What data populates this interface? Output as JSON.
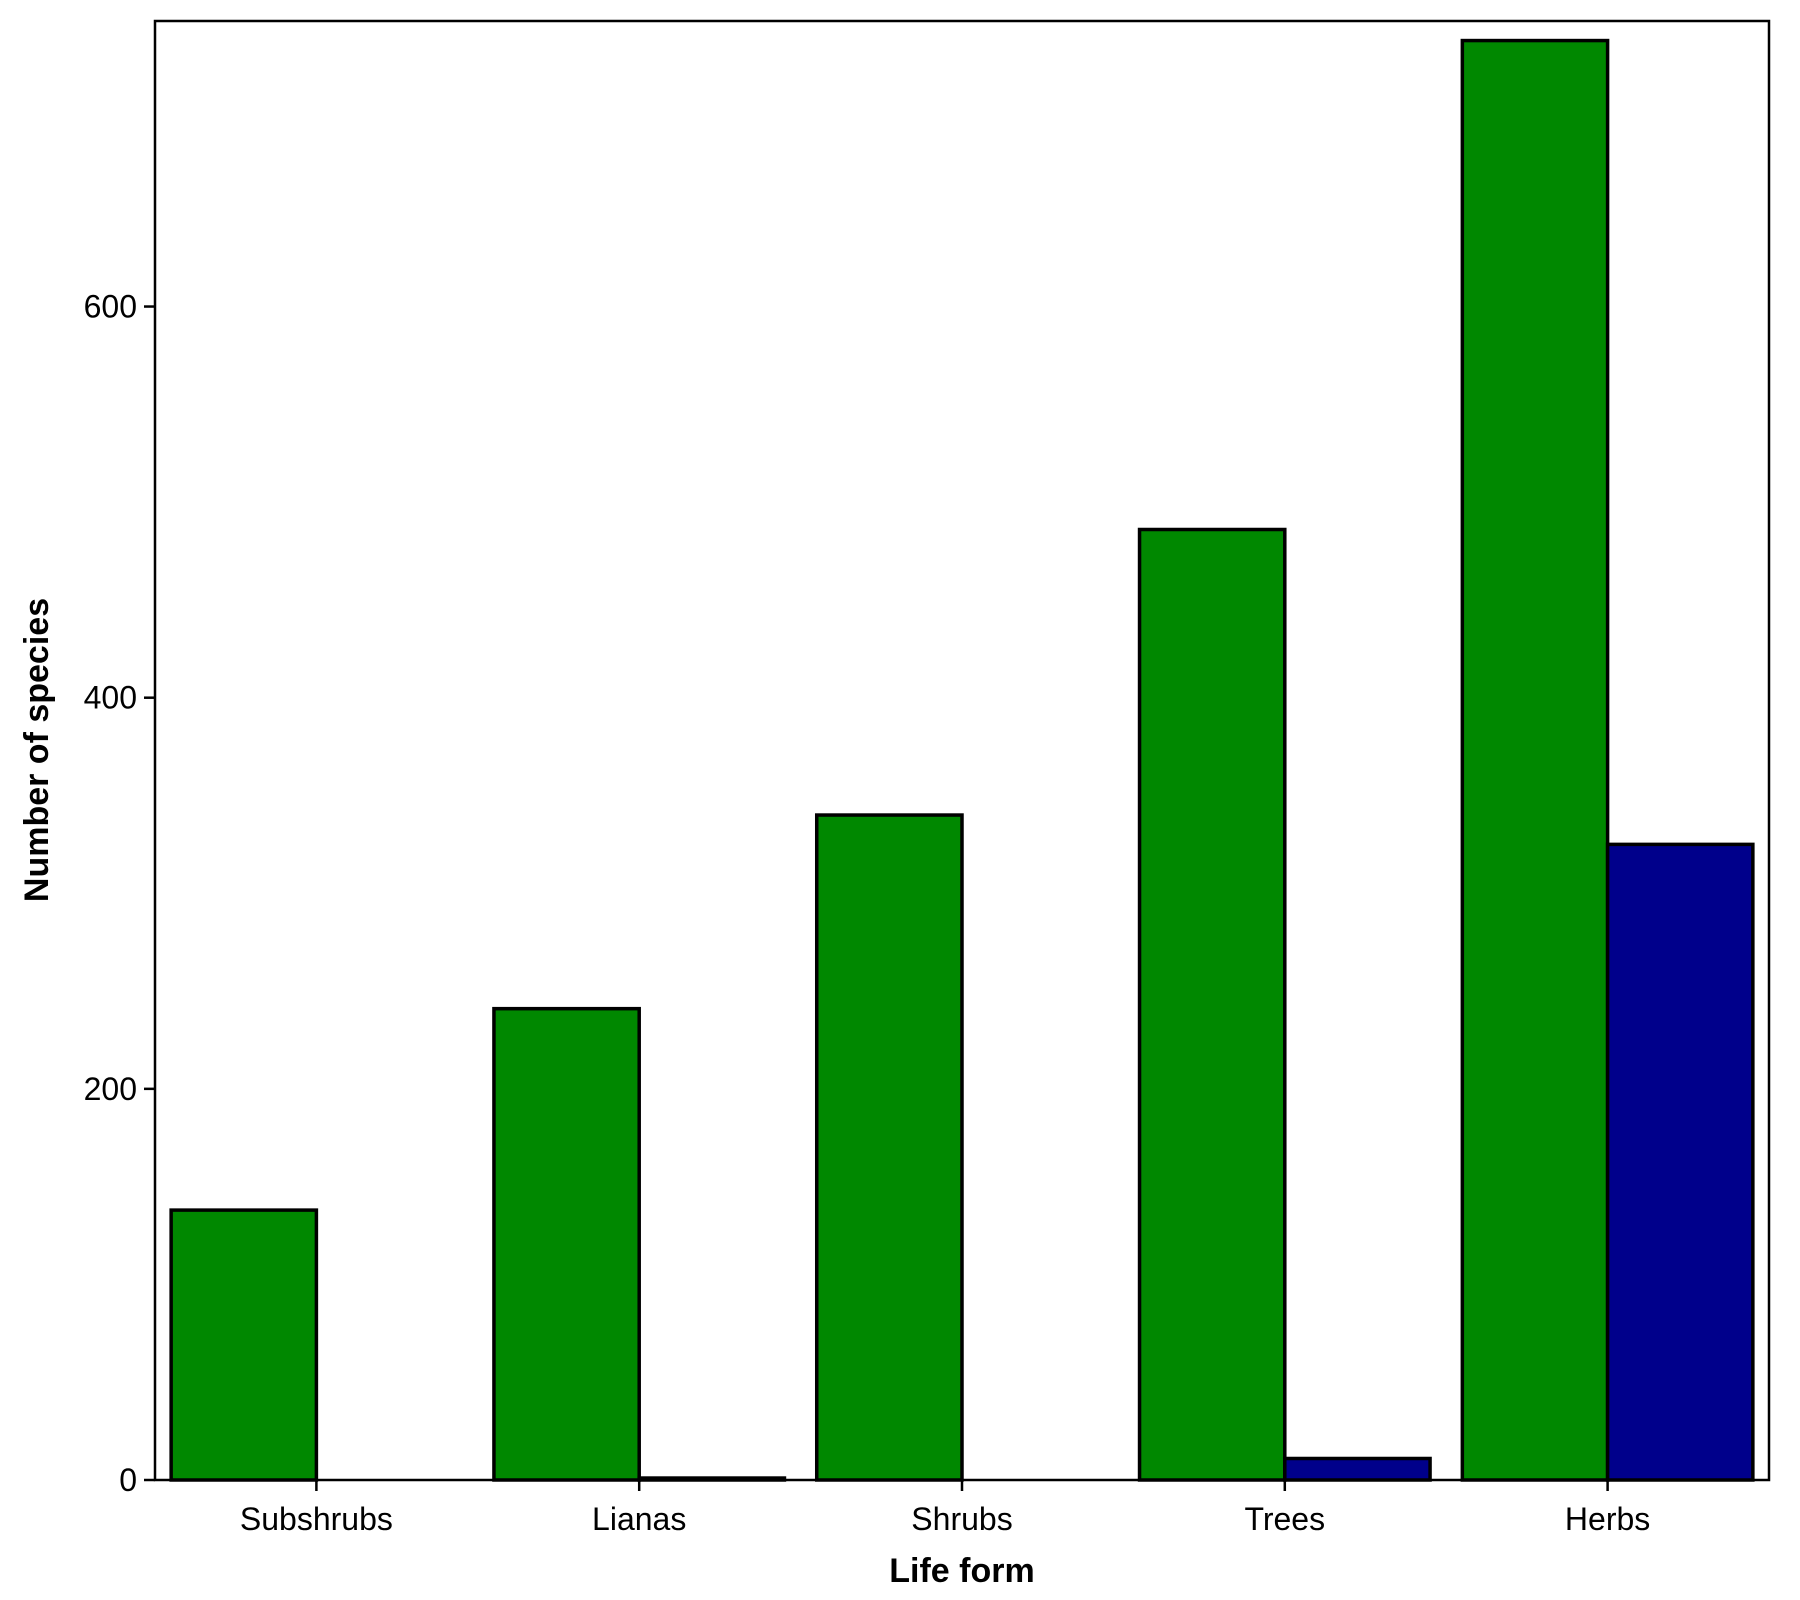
{
  "chart_data": {
    "type": "bar",
    "xlabel": "Life form",
    "ylabel": "Number of species",
    "categories": [
      "Subshrubs",
      "Lianas",
      "Shrubs",
      "Trees",
      "Herbs"
    ],
    "series": [
      {
        "color": "#008800",
        "values": [
          138,
          241,
          340,
          486,
          736
        ]
      },
      {
        "color": "#00008B",
        "values": [
          0,
          1,
          0,
          11,
          325
        ]
      }
    ],
    "ylim": [
      0,
      746
    ],
    "yticks": [
      0,
      200,
      400,
      600
    ],
    "grid": false,
    "legend": "none"
  }
}
